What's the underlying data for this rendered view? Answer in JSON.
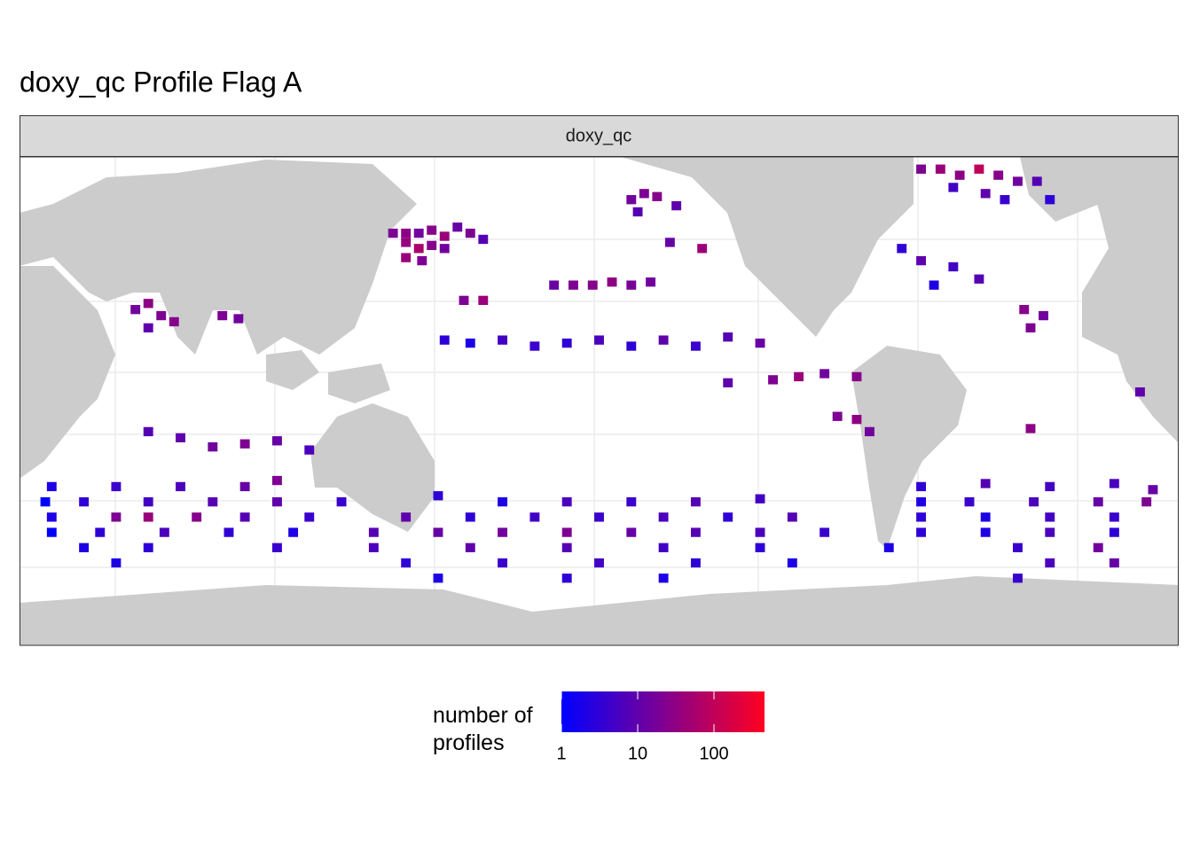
{
  "chart_data": {
    "type": "tile-map",
    "title": "doxy_qc Profile Flag A",
    "facet": "doxy_qc",
    "xlim": [
      20,
      380
    ],
    "ylim": [
      -80,
      80
    ],
    "cell_size": [
      3,
      3
    ],
    "cells": [
      [
        136,
        55,
        20
      ],
      [
        140,
        55,
        30
      ],
      [
        144,
        55,
        15
      ],
      [
        148,
        56,
        25
      ],
      [
        152,
        54,
        40
      ],
      [
        156,
        57,
        12
      ],
      [
        160,
        55,
        20
      ],
      [
        164,
        53,
        8
      ],
      [
        140,
        52,
        35
      ],
      [
        144,
        50,
        60
      ],
      [
        148,
        51,
        25
      ],
      [
        152,
        50,
        15
      ],
      [
        140,
        47,
        40
      ],
      [
        145,
        46,
        20
      ],
      [
        210,
        66,
        15
      ],
      [
        214,
        68,
        20
      ],
      [
        218,
        67,
        25
      ],
      [
        224,
        64,
        10
      ],
      [
        212,
        62,
        8
      ],
      [
        232,
        50,
        40
      ],
      [
        222,
        52,
        12
      ],
      [
        186,
        38,
        12
      ],
      [
        192,
        38,
        20
      ],
      [
        198,
        38,
        25
      ],
      [
        204,
        39,
        30
      ],
      [
        210,
        38,
        18
      ],
      [
        216,
        39,
        15
      ],
      [
        158,
        33,
        20
      ],
      [
        164,
        33,
        40
      ],
      [
        56,
        30,
        15
      ],
      [
        60,
        32,
        30
      ],
      [
        64,
        28,
        20
      ],
      [
        68,
        26,
        25
      ],
      [
        60,
        24,
        10
      ],
      [
        83,
        28,
        20
      ],
      [
        88,
        27,
        15
      ],
      [
        152,
        20,
        3
      ],
      [
        160,
        19,
        2
      ],
      [
        170,
        20,
        5
      ],
      [
        180,
        18,
        4
      ],
      [
        190,
        19,
        3
      ],
      [
        200,
        20,
        6
      ],
      [
        210,
        18,
        3
      ],
      [
        220,
        20,
        10
      ],
      [
        230,
        18,
        4
      ],
      [
        240,
        21,
        8
      ],
      [
        250,
        19,
        12
      ],
      [
        254,
        7,
        20
      ],
      [
        262,
        8,
        40
      ],
      [
        270,
        9,
        15
      ],
      [
        280,
        8,
        25
      ],
      [
        240,
        6,
        10
      ],
      [
        274,
        -5,
        20
      ],
      [
        280,
        -6,
        30
      ],
      [
        284,
        -10,
        15
      ],
      [
        60,
        -10,
        8
      ],
      [
        70,
        -12,
        10
      ],
      [
        80,
        -15,
        15
      ],
      [
        90,
        -14,
        20
      ],
      [
        100,
        -13,
        12
      ],
      [
        110,
        -16,
        6
      ],
      [
        300,
        76,
        20
      ],
      [
        306,
        76,
        40
      ],
      [
        312,
        74,
        30
      ],
      [
        318,
        76,
        100
      ],
      [
        324,
        74,
        25
      ],
      [
        330,
        72,
        15
      ],
      [
        336,
        72,
        8
      ],
      [
        310,
        70,
        5
      ],
      [
        320,
        68,
        10
      ],
      [
        326,
        66,
        4
      ],
      [
        340,
        66,
        3
      ],
      [
        294,
        50,
        3
      ],
      [
        300,
        46,
        10
      ],
      [
        310,
        44,
        5
      ],
      [
        318,
        40,
        8
      ],
      [
        304,
        38,
        2
      ],
      [
        332,
        30,
        25
      ],
      [
        338,
        28,
        15
      ],
      [
        334,
        24,
        20
      ],
      [
        368,
        3,
        10
      ],
      [
        334,
        -9,
        30
      ],
      [
        30,
        -28,
        2
      ],
      [
        50,
        -28,
        4
      ],
      [
        70,
        -28,
        6
      ],
      [
        90,
        -28,
        12
      ],
      [
        100,
        -26,
        20
      ],
      [
        300,
        -28,
        3
      ],
      [
        320,
        -27,
        8
      ],
      [
        340,
        -28,
        5
      ],
      [
        360,
        -27,
        6
      ],
      [
        372,
        -29,
        12
      ],
      [
        28,
        -33,
        1
      ],
      [
        40,
        -33,
        3
      ],
      [
        60,
        -33,
        5
      ],
      [
        80,
        -33,
        8
      ],
      [
        100,
        -33,
        10
      ],
      [
        120,
        -33,
        4
      ],
      [
        150,
        -31,
        3
      ],
      [
        170,
        -33,
        2
      ],
      [
        190,
        -33,
        6
      ],
      [
        210,
        -33,
        4
      ],
      [
        230,
        -33,
        8
      ],
      [
        250,
        -32,
        5
      ],
      [
        300,
        -33,
        2
      ],
      [
        315,
        -33,
        4
      ],
      [
        335,
        -33,
        6
      ],
      [
        355,
        -33,
        12
      ],
      [
        370,
        -33,
        20
      ],
      [
        30,
        -38,
        2
      ],
      [
        50,
        -38,
        20
      ],
      [
        60,
        -38,
        40
      ],
      [
        75,
        -38,
        25
      ],
      [
        90,
        -38,
        8
      ],
      [
        110,
        -38,
        4
      ],
      [
        140,
        -38,
        10
      ],
      [
        160,
        -38,
        3
      ],
      [
        180,
        -38,
        5
      ],
      [
        200,
        -38,
        4
      ],
      [
        220,
        -38,
        6
      ],
      [
        240,
        -38,
        3
      ],
      [
        260,
        -38,
        8
      ],
      [
        300,
        -38,
        3
      ],
      [
        320,
        -38,
        2
      ],
      [
        340,
        -38,
        5
      ],
      [
        360,
        -38,
        4
      ],
      [
        30,
        -43,
        1
      ],
      [
        45,
        -43,
        3
      ],
      [
        65,
        -43,
        6
      ],
      [
        85,
        -43,
        3
      ],
      [
        105,
        -43,
        2
      ],
      [
        130,
        -43,
        8
      ],
      [
        150,
        -43,
        12
      ],
      [
        170,
        -43,
        15
      ],
      [
        190,
        -43,
        20
      ],
      [
        210,
        -43,
        12
      ],
      [
        230,
        -43,
        8
      ],
      [
        250,
        -43,
        6
      ],
      [
        270,
        -43,
        4
      ],
      [
        300,
        -43,
        3
      ],
      [
        320,
        -43,
        2
      ],
      [
        340,
        -43,
        6
      ],
      [
        360,
        -43,
        3
      ],
      [
        40,
        -48,
        2
      ],
      [
        60,
        -48,
        3
      ],
      [
        100,
        -48,
        4
      ],
      [
        130,
        -48,
        6
      ],
      [
        160,
        -48,
        10
      ],
      [
        190,
        -48,
        8
      ],
      [
        220,
        -48,
        5
      ],
      [
        250,
        -48,
        3
      ],
      [
        290,
        -48,
        2
      ],
      [
        330,
        -48,
        4
      ],
      [
        355,
        -48,
        15
      ],
      [
        50,
        -53,
        2
      ],
      [
        140,
        -53,
        3
      ],
      [
        170,
        -53,
        4
      ],
      [
        200,
        -53,
        5
      ],
      [
        230,
        -53,
        3
      ],
      [
        260,
        -53,
        2
      ],
      [
        340,
        -53,
        6
      ],
      [
        360,
        -53,
        12
      ],
      [
        150,
        -58,
        2
      ],
      [
        190,
        -58,
        3
      ],
      [
        220,
        -58,
        2
      ],
      [
        330,
        -58,
        4
      ]
    ],
    "legend": {
      "title": "number of profiles",
      "limits": [
        1,
        460
      ],
      "ticks": [
        1,
        10,
        100
      ],
      "log": true,
      "low_color": "#0000ff",
      "high_color": "#ff0022"
    }
  }
}
